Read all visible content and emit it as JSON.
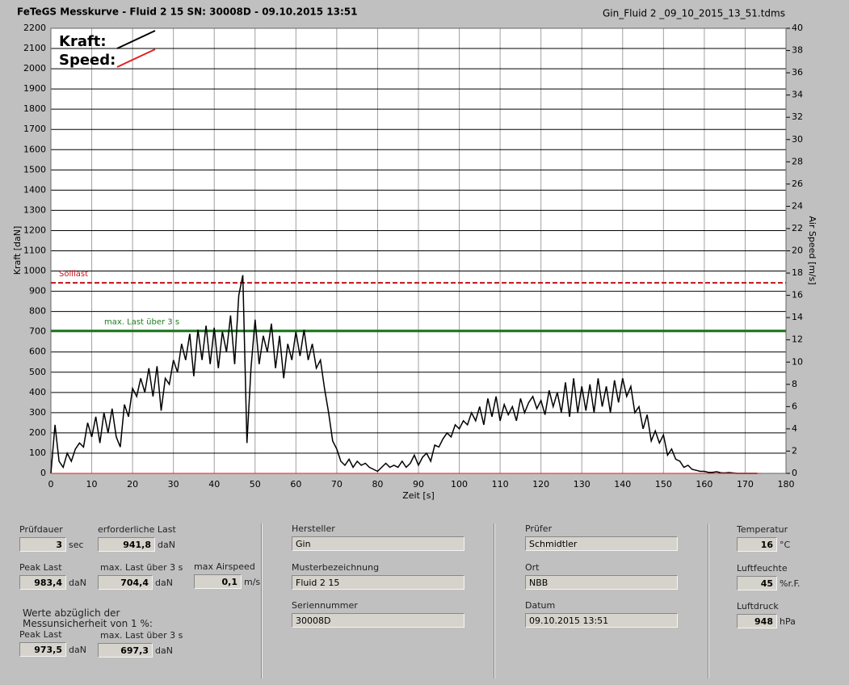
{
  "header": {
    "title": "FeTeGS Messkurve - Fluid 2 15  SN: 30008D - 09.10.2015 13:51",
    "file": "Gin_Fluid 2 _09_10_2015_13_51.tdms"
  },
  "chart_data": {
    "type": "line",
    "x_label": "Zeit [s]",
    "y_label": "Kraft [daN]",
    "y2_label": "Air Speed [m/s]",
    "xlim": [
      0,
      180
    ],
    "xticks": [
      0,
      10,
      20,
      30,
      40,
      50,
      60,
      70,
      80,
      90,
      100,
      110,
      120,
      130,
      140,
      150,
      160,
      170,
      180
    ],
    "ylim": [
      0,
      2200
    ],
    "yticks": [
      0,
      100,
      200,
      300,
      400,
      500,
      600,
      700,
      800,
      900,
      1000,
      1100,
      1200,
      1300,
      1400,
      1500,
      1600,
      1700,
      1800,
      1900,
      2000,
      2100,
      2200
    ],
    "y2lim": [
      0,
      40
    ],
    "y2ticks": [
      0,
      2,
      4,
      6,
      8,
      10,
      12,
      14,
      16,
      18,
      20,
      22,
      24,
      26,
      28,
      30,
      32,
      34,
      36,
      38,
      40
    ],
    "grid": true,
    "series": [
      {
        "name": "Kraft:",
        "color": "#000000",
        "x": [
          0,
          1,
          2,
          3,
          4,
          5,
          6,
          7,
          8,
          9,
          10,
          11,
          12,
          13,
          14,
          15,
          16,
          17,
          18,
          19,
          20,
          21,
          22,
          23,
          24,
          25,
          26,
          27,
          28,
          29,
          30,
          31,
          32,
          33,
          34,
          35,
          36,
          37,
          38,
          39,
          40,
          41,
          42,
          43,
          44,
          45,
          46,
          47,
          48,
          49,
          50,
          51,
          52,
          53,
          54,
          55,
          56,
          57,
          58,
          59,
          60,
          61,
          62,
          63,
          64,
          65,
          66,
          67,
          68,
          69,
          70,
          71,
          72,
          73,
          74,
          75,
          76,
          77,
          78,
          79,
          80,
          81,
          82,
          83,
          84,
          85,
          86,
          87,
          88,
          89,
          90,
          91,
          92,
          93,
          94,
          95,
          96,
          97,
          98,
          99,
          100,
          101,
          102,
          103,
          104,
          105,
          106,
          107,
          108,
          109,
          110,
          111,
          112,
          113,
          114,
          115,
          116,
          117,
          118,
          119,
          120,
          121,
          122,
          123,
          124,
          125,
          126,
          127,
          128,
          129,
          130,
          131,
          132,
          133,
          134,
          135,
          136,
          137,
          138,
          139,
          140,
          141,
          142,
          143,
          144,
          145,
          146,
          147,
          148,
          149,
          150,
          151,
          152,
          153,
          154,
          155,
          156,
          157,
          158,
          159,
          160,
          161,
          162,
          163,
          164,
          165,
          166,
          167,
          168,
          169,
          170,
          171,
          172,
          173
        ],
        "values": [
          0,
          240,
          60,
          30,
          100,
          60,
          120,
          150,
          130,
          250,
          180,
          280,
          150,
          300,
          200,
          320,
          180,
          130,
          340,
          280,
          420,
          380,
          470,
          400,
          520,
          380,
          530,
          310,
          470,
          440,
          560,
          500,
          640,
          560,
          690,
          480,
          710,
          560,
          730,
          540,
          720,
          520,
          700,
          600,
          780,
          540,
          880,
          980,
          150,
          520,
          760,
          540,
          680,
          600,
          740,
          520,
          680,
          470,
          640,
          560,
          700,
          580,
          710,
          560,
          640,
          520,
          560,
          420,
          300,
          160,
          120,
          60,
          40,
          70,
          30,
          60,
          40,
          50,
          30,
          20,
          10,
          30,
          50,
          30,
          40,
          30,
          60,
          30,
          50,
          90,
          40,
          80,
          100,
          60,
          140,
          130,
          170,
          200,
          180,
          240,
          220,
          260,
          240,
          300,
          260,
          330,
          240,
          370,
          280,
          380,
          260,
          340,
          290,
          330,
          260,
          370,
          300,
          350,
          380,
          320,
          360,
          290,
          410,
          330,
          400,
          300,
          450,
          280,
          470,
          300,
          430,
          310,
          440,
          300,
          470,
          330,
          430,
          300,
          460,
          350,
          470,
          380,
          430,
          300,
          330,
          220,
          290,
          160,
          210,
          150,
          190,
          90,
          120,
          70,
          60,
          30,
          40,
          20,
          15,
          10,
          10,
          5,
          5,
          8,
          3,
          2,
          4,
          2,
          0,
          0,
          0,
          0,
          0,
          0
        ]
      },
      {
        "name": "Speed:",
        "color": "#e02020",
        "axis": "y2",
        "x": [
          0,
          174
        ],
        "values": [
          0,
          0
        ]
      }
    ],
    "reference_lines": [
      {
        "label": "Solllast",
        "value": 941.8,
        "color": "#c0101a",
        "dashed": true
      },
      {
        "label": "max. Last über  3 s",
        "value": 704.4,
        "color": "#1a7a1a",
        "dashed": false
      }
    ]
  },
  "fields": [
    {
      "label": "Prüfdauer",
      "value": "3",
      "unit": "sec"
    },
    {
      "label": "erforderliche Last",
      "value": "941,8",
      "unit": "daN"
    },
    {
      "label": "Peak Last",
      "value": "983,4",
      "unit": "daN"
    },
    {
      "label": "max. Last über  3 s",
      "value": "704,4",
      "unit": "daN"
    },
    {
      "label": "max Airspeed",
      "value": "0,1",
      "unit": "m/s"
    },
    {
      "label": "Peak Last",
      "value": "973,5",
      "unit": "daN"
    },
    {
      "label": "max. Last über  3 s",
      "value": "697,3",
      "unit": "daN"
    },
    {
      "label": "Hersteller",
      "value": "Gin"
    },
    {
      "label": "Musterbezeichnung",
      "value": "Fluid 2 15"
    },
    {
      "label": "Seriennummer",
      "value": "30008D"
    },
    {
      "label": "Prüfer",
      "value": "Schmidtler"
    },
    {
      "label": "Ort",
      "value": "NBB"
    },
    {
      "label": "Datum",
      "value": "09.10.2015 13:51"
    },
    {
      "label": "Temperatur",
      "value": "16",
      "unit": "°C"
    },
    {
      "label": "Luftfeuchte",
      "value": "45",
      "unit": "%r.F."
    },
    {
      "label": "Luftdruck",
      "value": "948",
      "unit": "hPa"
    }
  ],
  "note": [
    "Werte abzüglich der",
    "Messunsicherheit von 1  %:"
  ]
}
